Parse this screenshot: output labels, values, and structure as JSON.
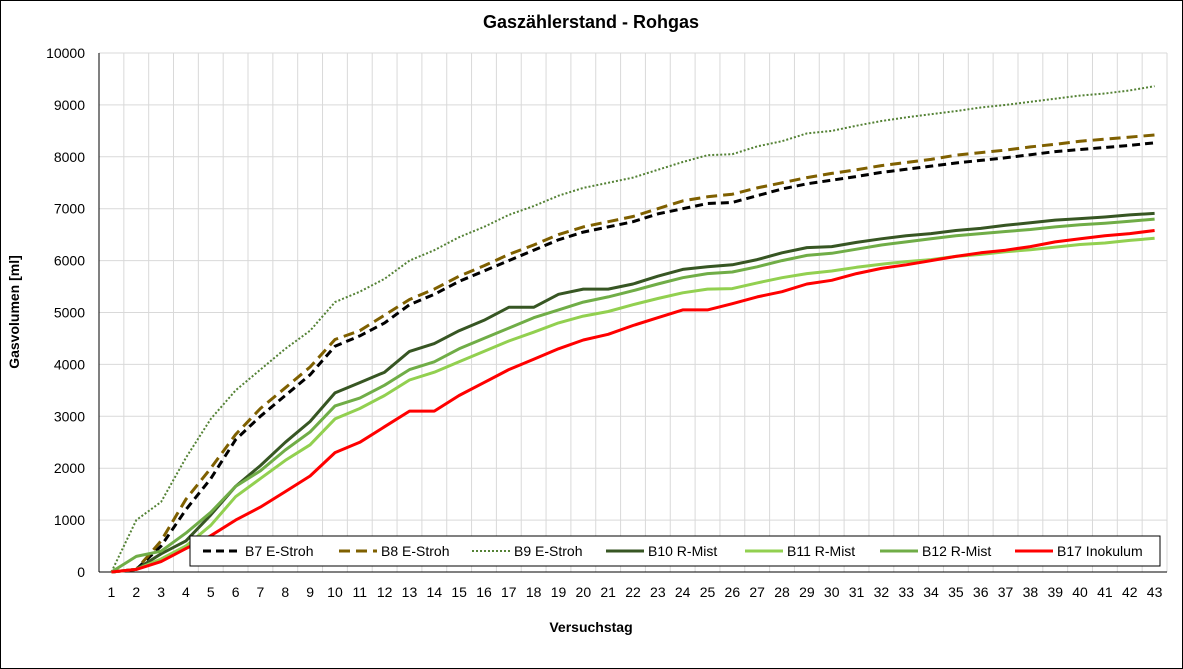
{
  "chart_data": {
    "type": "line",
    "title": "Gaszählerstand - Rohgas",
    "xlabel": "Versuchstag",
    "ylabel": "Gasvolumen [ml]",
    "ylim": [
      0,
      10000
    ],
    "yticks": [
      0,
      1000,
      2000,
      3000,
      4000,
      5000,
      6000,
      7000,
      8000,
      9000,
      10000
    ],
    "grid": true,
    "legend_position": "bottom",
    "x": [
      1,
      2,
      3,
      4,
      5,
      6,
      7,
      8,
      9,
      10,
      11,
      12,
      13,
      14,
      15,
      16,
      17,
      18,
      19,
      20,
      21,
      22,
      23,
      24,
      25,
      26,
      27,
      28,
      29,
      30,
      31,
      32,
      33,
      34,
      35,
      36,
      37,
      38,
      39,
      40,
      41,
      42,
      43
    ],
    "series": [
      {
        "name": "B7 E-Stroh",
        "color": "#000000",
        "dash": "dash",
        "width": 3,
        "values": [
          0,
          50,
          500,
          1200,
          1800,
          2550,
          3000,
          3400,
          3800,
          4350,
          4550,
          4800,
          5150,
          5350,
          5600,
          5800,
          6000,
          6200,
          6400,
          6550,
          6650,
          6750,
          6900,
          7000,
          7100,
          7120,
          7250,
          7380,
          7480,
          7550,
          7620,
          7700,
          7760,
          7820,
          7880,
          7930,
          7980,
          8040,
          8100,
          8140,
          8180,
          8220,
          8270
        ]
      },
      {
        "name": "B8 E-Stroh",
        "color": "#7f6000",
        "dash": "longdash",
        "width": 3,
        "values": [
          0,
          50,
          600,
          1400,
          2000,
          2650,
          3150,
          3550,
          3950,
          4480,
          4650,
          4950,
          5250,
          5450,
          5700,
          5900,
          6120,
          6300,
          6500,
          6650,
          6750,
          6850,
          7000,
          7150,
          7230,
          7280,
          7400,
          7500,
          7600,
          7680,
          7750,
          7830,
          7890,
          7950,
          8030,
          8080,
          8130,
          8190,
          8240,
          8300,
          8340,
          8380,
          8420
        ]
      },
      {
        "name": "B9 E-Stroh",
        "color": "#548235",
        "dash": "dot",
        "width": 2,
        "values": [
          0,
          1000,
          1350,
          2200,
          2950,
          3500,
          3900,
          4300,
          4650,
          5200,
          5400,
          5650,
          6000,
          6200,
          6450,
          6650,
          6880,
          7050,
          7250,
          7400,
          7500,
          7600,
          7750,
          7900,
          8030,
          8050,
          8200,
          8300,
          8450,
          8500,
          8600,
          8690,
          8760,
          8820,
          8880,
          8950,
          9000,
          9060,
          9120,
          9180,
          9220,
          9280,
          9360
        ]
      },
      {
        "name": "B10 R-Mist",
        "color": "#375623",
        "dash": "solid",
        "width": 3,
        "values": [
          0,
          50,
          350,
          600,
          1100,
          1650,
          2050,
          2500,
          2900,
          3450,
          3650,
          3850,
          4250,
          4400,
          4650,
          4850,
          5100,
          5100,
          5350,
          5450,
          5450,
          5550,
          5700,
          5830,
          5880,
          5920,
          6020,
          6150,
          6250,
          6270,
          6350,
          6420,
          6480,
          6520,
          6580,
          6620,
          6680,
          6730,
          6780,
          6810,
          6840,
          6880,
          6910
        ]
      },
      {
        "name": "B11 R-Mist",
        "color": "#92d050",
        "dash": "solid",
        "width": 3,
        "values": [
          0,
          50,
          250,
          500,
          900,
          1450,
          1800,
          2150,
          2450,
          2950,
          3150,
          3400,
          3700,
          3850,
          4050,
          4250,
          4450,
          4620,
          4800,
          4930,
          5020,
          5150,
          5270,
          5380,
          5450,
          5460,
          5570,
          5670,
          5750,
          5800,
          5870,
          5930,
          5980,
          6020,
          6080,
          6120,
          6170,
          6210,
          6260,
          6310,
          6340,
          6390,
          6430
        ]
      },
      {
        "name": "B12 R-Mist",
        "color": "#70ad47",
        "dash": "solid",
        "width": 3,
        "values": [
          0,
          300,
          400,
          750,
          1150,
          1650,
          1950,
          2350,
          2700,
          3200,
          3350,
          3600,
          3900,
          4050,
          4300,
          4500,
          4700,
          4900,
          5050,
          5200,
          5300,
          5420,
          5550,
          5670,
          5750,
          5780,
          5880,
          6000,
          6100,
          6140,
          6220,
          6300,
          6360,
          6420,
          6480,
          6520,
          6560,
          6600,
          6650,
          6690,
          6720,
          6760,
          6800
        ]
      },
      {
        "name": "B17 Inokulum",
        "color": "#ff0000",
        "dash": "solid",
        "width": 3,
        "values": [
          0,
          50,
          200,
          450,
          700,
          1000,
          1250,
          1550,
          1850,
          2300,
          2500,
          2800,
          3100,
          3100,
          3400,
          3650,
          3900,
          4100,
          4300,
          4470,
          4580,
          4750,
          4900,
          5050,
          5050,
          5170,
          5300,
          5400,
          5550,
          5620,
          5750,
          5850,
          5920,
          6000,
          6080,
          6150,
          6200,
          6270,
          6360,
          6420,
          6480,
          6520,
          6580
        ]
      }
    ]
  }
}
